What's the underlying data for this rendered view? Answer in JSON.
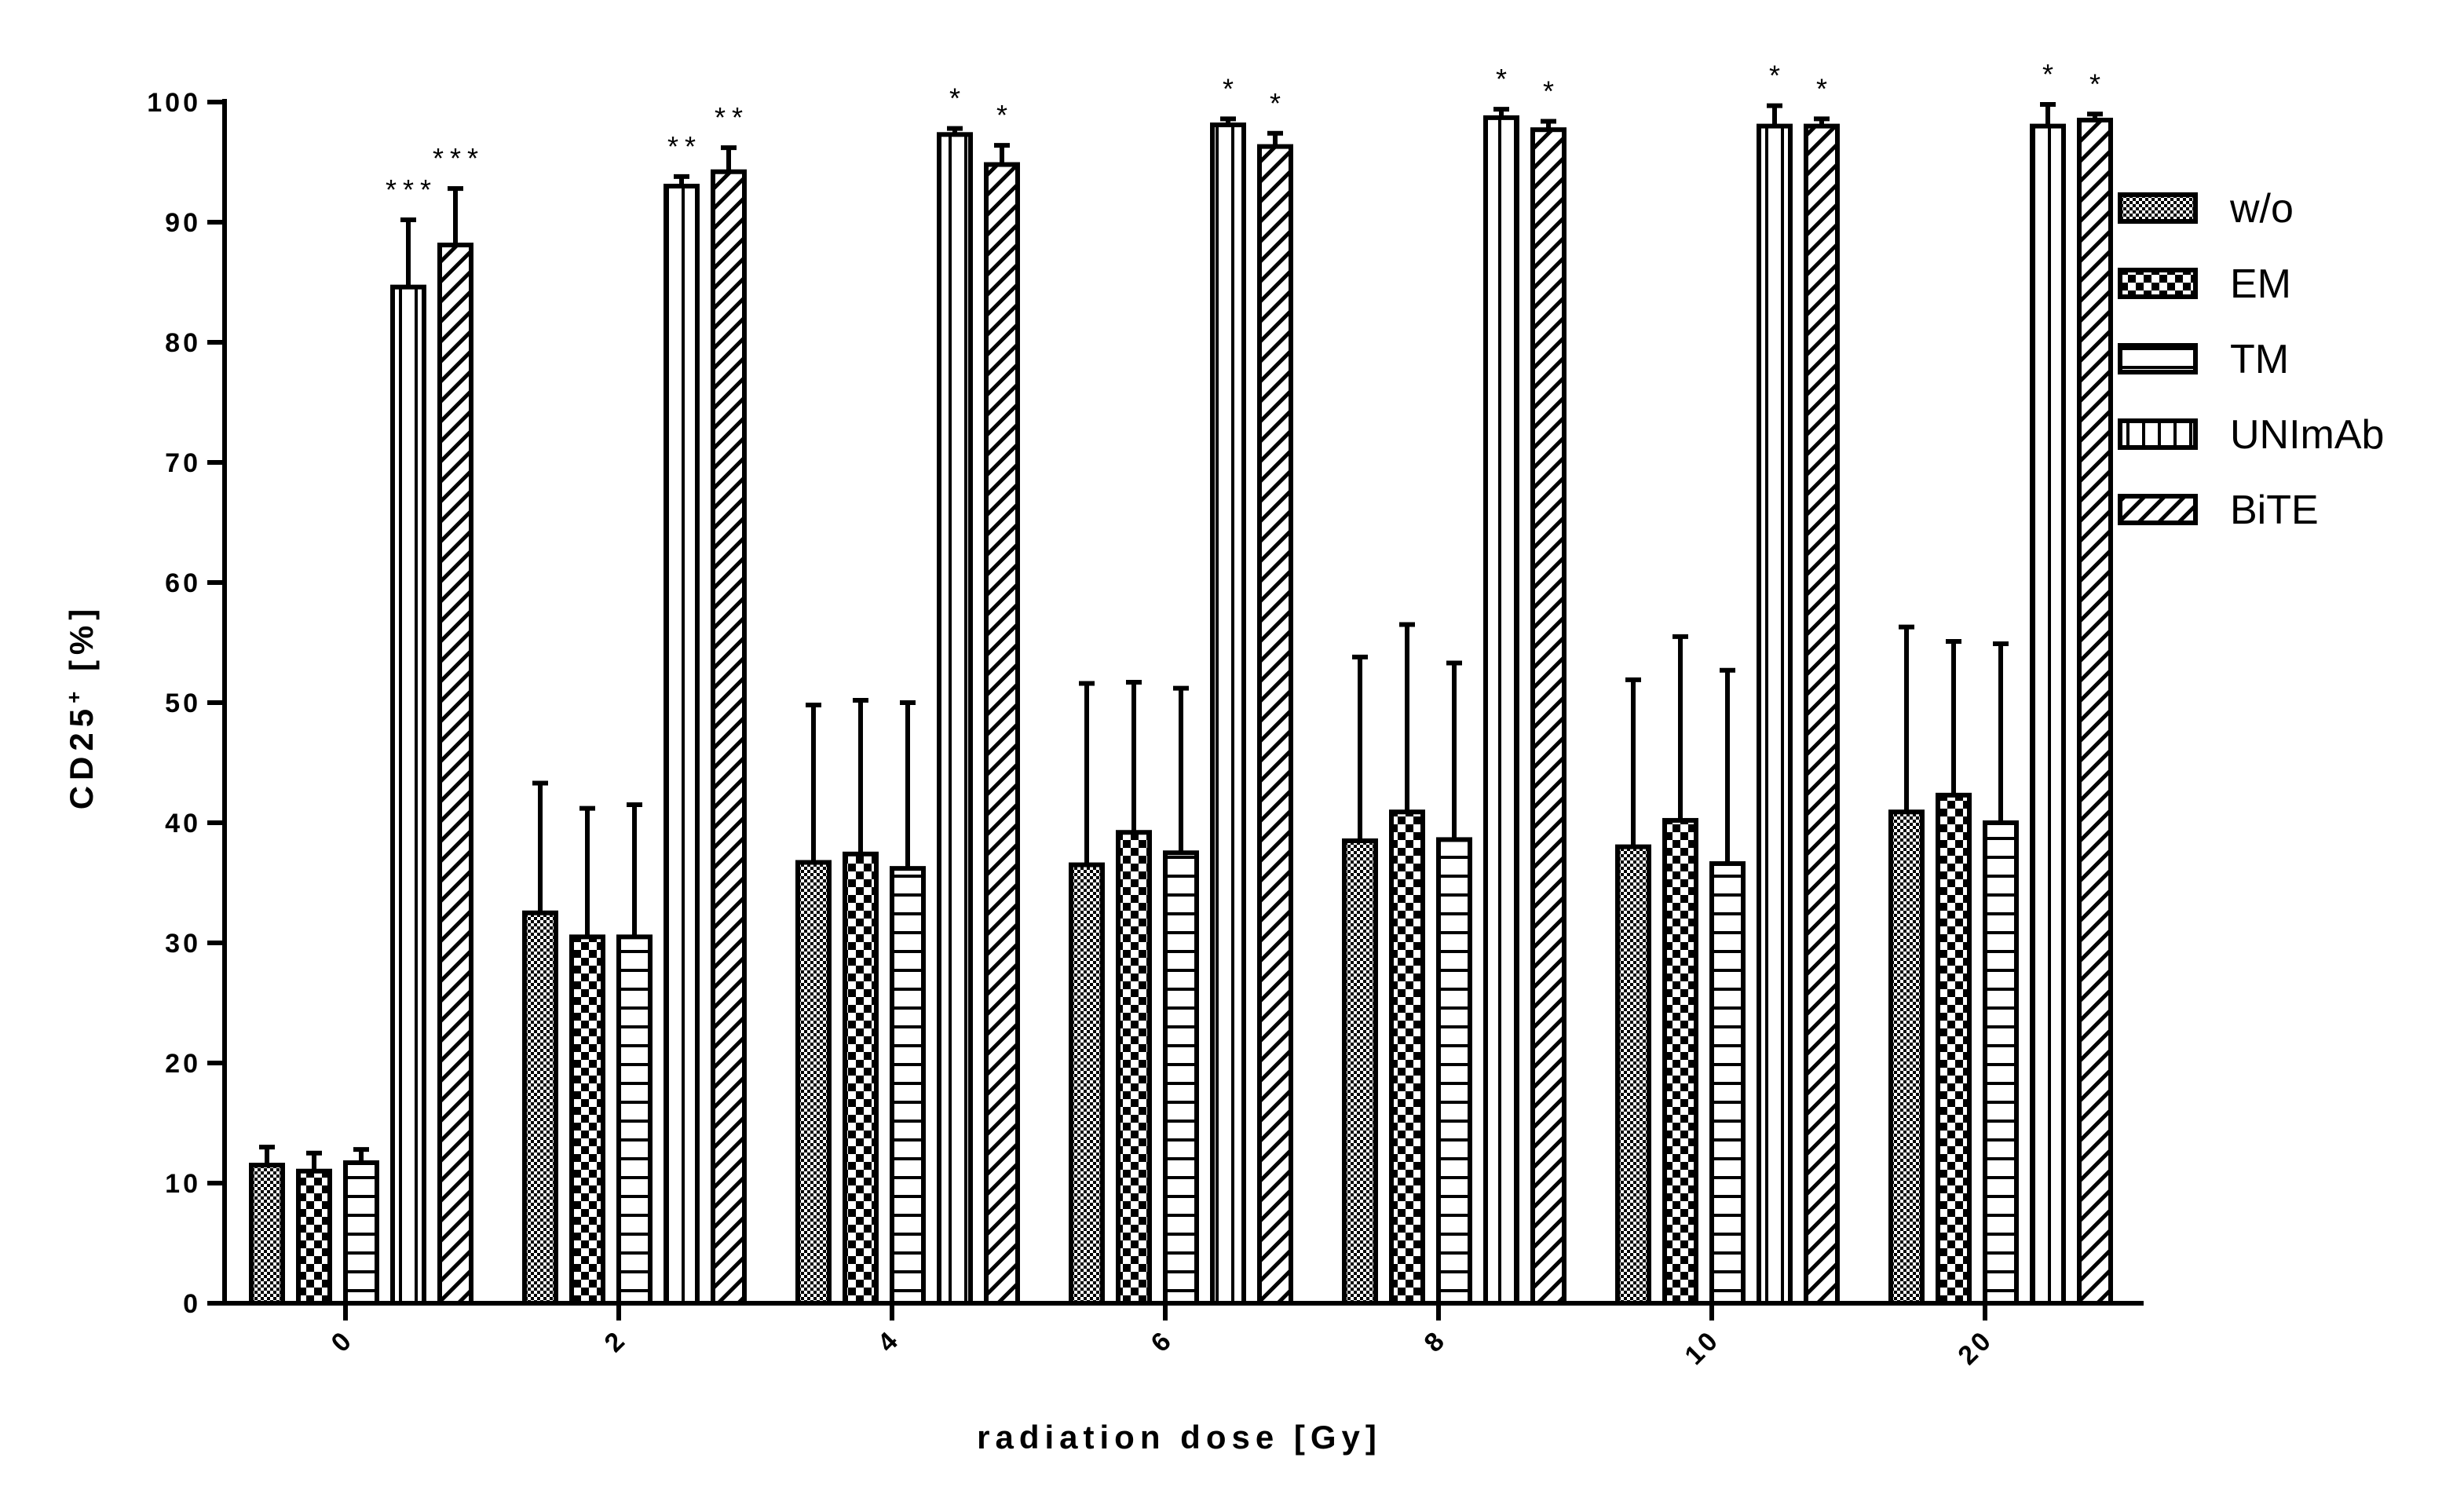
{
  "chart_data": {
    "type": "bar",
    "xlabel": "radiation dose [Gy]",
    "ylabel": "CD25",
    "ylabel_superscript": "+",
    "ylabel_suffix": " [%]",
    "ylim": [
      0,
      100
    ],
    "yticks": [
      0,
      10,
      20,
      30,
      40,
      50,
      60,
      70,
      80,
      90,
      100
    ],
    "categories": [
      "0",
      "2",
      "4",
      "6",
      "8",
      "10",
      "20"
    ],
    "legend_position": "right",
    "series": [
      {
        "name": "w/o",
        "pattern": "dots",
        "values": [
          11.5,
          32.5,
          36.7,
          36.5,
          38.5,
          38.0,
          40.9
        ],
        "errors": [
          1.5,
          10.8,
          13.1,
          15.1,
          15.3,
          13.9,
          15.4
        ],
        "significance": [
          "",
          "",
          "",
          "",
          "",
          "",
          ""
        ]
      },
      {
        "name": "EM",
        "pattern": "checker",
        "values": [
          11.0,
          30.5,
          37.4,
          39.2,
          40.9,
          40.2,
          42.3
        ],
        "errors": [
          1.5,
          10.7,
          12.8,
          12.5,
          15.6,
          15.3,
          12.8
        ],
        "significance": [
          "",
          "",
          "",
          "",
          "",
          "",
          ""
        ]
      },
      {
        "name": "TM",
        "pattern": "hlines",
        "values": [
          11.7,
          30.5,
          36.2,
          37.5,
          38.6,
          36.6,
          40.0
        ],
        "errors": [
          1.1,
          11.0,
          13.8,
          13.7,
          14.7,
          16.1,
          14.9
        ],
        "significance": [
          "",
          "",
          "",
          "",
          "",
          "",
          ""
        ]
      },
      {
        "name": "UNImAb",
        "pattern": "vlines",
        "values": [
          84.6,
          93.0,
          97.3,
          98.1,
          98.7,
          98.0,
          98.0
        ],
        "errors": [
          5.6,
          0.8,
          0.5,
          0.5,
          0.7,
          1.7,
          1.8
        ],
        "significance": [
          "***",
          "**",
          "*",
          "*",
          "*",
          "*",
          "*"
        ]
      },
      {
        "name": "BiTE",
        "pattern": "diagonal",
        "values": [
          88.1,
          94.2,
          94.8,
          96.3,
          97.7,
          98.0,
          98.5
        ],
        "errors": [
          4.7,
          2.0,
          1.6,
          1.1,
          0.7,
          0.6,
          0.5
        ],
        "significance": [
          "***",
          "**",
          "*",
          "*",
          "*",
          "*",
          "*"
        ]
      }
    ]
  }
}
